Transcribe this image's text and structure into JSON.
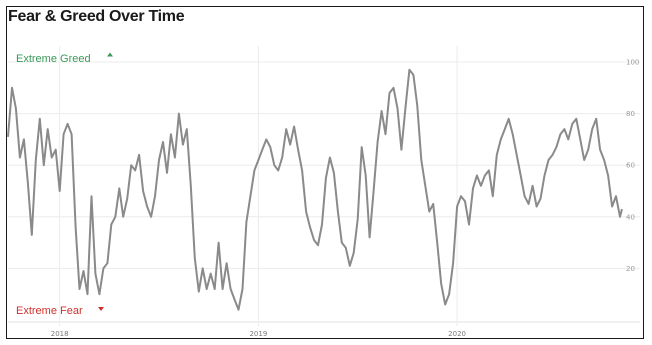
{
  "chart_data": {
    "type": "line",
    "title": "Fear & Greed Over Time",
    "xlabel": "",
    "ylabel": "",
    "ylim": [
      0,
      100
    ],
    "y_ticks": [
      "100",
      "80",
      "60",
      "40",
      "20"
    ],
    "x_ticks": [
      {
        "value": 2018.0,
        "label": "2018"
      },
      {
        "value": 2019.0,
        "label": "2019"
      },
      {
        "value": 2020.0,
        "label": "2020"
      }
    ],
    "xlim": [
      2017.74,
      2020.83
    ],
    "grid": true,
    "annotations": {
      "top": "Extreme Greed",
      "bottom": "Extreme Fear"
    },
    "colors": {
      "line": "#8a8a8a",
      "greed": "#3a9a5a",
      "fear": "#d0312d"
    },
    "series": [
      {
        "values": [
          [
            2017.74,
            71
          ],
          [
            2017.76,
            90
          ],
          [
            2017.78,
            82
          ],
          [
            2017.8,
            63
          ],
          [
            2017.82,
            70
          ],
          [
            2017.84,
            53
          ],
          [
            2017.86,
            33
          ],
          [
            2017.88,
            62
          ],
          [
            2017.9,
            78
          ],
          [
            2017.92,
            60
          ],
          [
            2017.94,
            74
          ],
          [
            2017.96,
            63
          ],
          [
            2017.98,
            66
          ],
          [
            2018.0,
            50
          ],
          [
            2018.02,
            72
          ],
          [
            2018.04,
            76
          ],
          [
            2018.06,
            72
          ],
          [
            2018.08,
            36
          ],
          [
            2018.1,
            12
          ],
          [
            2018.12,
            19
          ],
          [
            2018.14,
            10
          ],
          [
            2018.16,
            48
          ],
          [
            2018.18,
            18
          ],
          [
            2018.2,
            10
          ],
          [
            2018.22,
            20
          ],
          [
            2018.24,
            22
          ],
          [
            2018.26,
            37
          ],
          [
            2018.28,
            40
          ],
          [
            2018.3,
            51
          ],
          [
            2018.32,
            40
          ],
          [
            2018.34,
            47
          ],
          [
            2018.36,
            60
          ],
          [
            2018.38,
            58
          ],
          [
            2018.4,
            64
          ],
          [
            2018.42,
            50
          ],
          [
            2018.44,
            44
          ],
          [
            2018.46,
            40
          ],
          [
            2018.48,
            48
          ],
          [
            2018.5,
            62
          ],
          [
            2018.52,
            69
          ],
          [
            2018.54,
            57
          ],
          [
            2018.56,
            72
          ],
          [
            2018.58,
            63
          ],
          [
            2018.6,
            80
          ],
          [
            2018.62,
            68
          ],
          [
            2018.64,
            74
          ],
          [
            2018.66,
            52
          ],
          [
            2018.68,
            24
          ],
          [
            2018.7,
            11
          ],
          [
            2018.72,
            20
          ],
          [
            2018.74,
            12
          ],
          [
            2018.76,
            18
          ],
          [
            2018.78,
            12
          ],
          [
            2018.8,
            30
          ],
          [
            2018.82,
            12
          ],
          [
            2018.84,
            22
          ],
          [
            2018.86,
            12
          ],
          [
            2018.88,
            8
          ],
          [
            2018.9,
            4
          ],
          [
            2018.92,
            12
          ],
          [
            2018.94,
            38
          ],
          [
            2018.96,
            48
          ],
          [
            2018.98,
            58
          ],
          [
            2019.0,
            62
          ],
          [
            2019.02,
            66
          ],
          [
            2019.04,
            70
          ],
          [
            2019.06,
            67
          ],
          [
            2019.08,
            60
          ],
          [
            2019.1,
            58
          ],
          [
            2019.12,
            63
          ],
          [
            2019.14,
            74
          ],
          [
            2019.16,
            68
          ],
          [
            2019.18,
            75
          ],
          [
            2019.2,
            66
          ],
          [
            2019.22,
            58
          ],
          [
            2019.24,
            42
          ],
          [
            2019.26,
            36
          ],
          [
            2019.28,
            31
          ],
          [
            2019.3,
            29
          ],
          [
            2019.32,
            37
          ],
          [
            2019.34,
            55
          ],
          [
            2019.36,
            63
          ],
          [
            2019.38,
            57
          ],
          [
            2019.4,
            42
          ],
          [
            2019.42,
            30
          ],
          [
            2019.44,
            28
          ],
          [
            2019.46,
            21
          ],
          [
            2019.48,
            26
          ],
          [
            2019.5,
            39
          ],
          [
            2019.52,
            67
          ],
          [
            2019.54,
            56
          ],
          [
            2019.56,
            32
          ],
          [
            2019.58,
            50
          ],
          [
            2019.6,
            69
          ],
          [
            2019.62,
            81
          ],
          [
            2019.64,
            72
          ],
          [
            2019.66,
            88
          ],
          [
            2019.68,
            90
          ],
          [
            2019.7,
            82
          ],
          [
            2019.72,
            66
          ],
          [
            2019.74,
            82
          ],
          [
            2019.76,
            97
          ],
          [
            2019.78,
            95
          ],
          [
            2019.8,
            83
          ],
          [
            2019.82,
            62
          ],
          [
            2019.84,
            52
          ],
          [
            2019.86,
            42
          ],
          [
            2019.88,
            45
          ],
          [
            2019.9,
            30
          ],
          [
            2019.92,
            14
          ],
          [
            2019.94,
            6
          ],
          [
            2019.96,
            10
          ],
          [
            2019.98,
            22
          ],
          [
            2020.0,
            44
          ],
          [
            2020.02,
            48
          ],
          [
            2020.04,
            46
          ],
          [
            2020.06,
            37
          ],
          [
            2020.08,
            51
          ],
          [
            2020.1,
            56
          ],
          [
            2020.12,
            52
          ],
          [
            2020.14,
            56
          ],
          [
            2020.16,
            58
          ],
          [
            2020.18,
            48
          ],
          [
            2020.2,
            64
          ],
          [
            2020.22,
            70
          ],
          [
            2020.24,
            74
          ],
          [
            2020.26,
            78
          ],
          [
            2020.28,
            72
          ],
          [
            2020.3,
            64
          ],
          [
            2020.32,
            56
          ],
          [
            2020.34,
            48
          ],
          [
            2020.36,
            45
          ],
          [
            2020.38,
            52
          ],
          [
            2020.4,
            44
          ],
          [
            2020.42,
            47
          ],
          [
            2020.44,
            56
          ],
          [
            2020.46,
            62
          ],
          [
            2020.48,
            64
          ],
          [
            2020.5,
            67
          ],
          [
            2020.52,
            72
          ],
          [
            2020.54,
            74
          ],
          [
            2020.56,
            70
          ],
          [
            2020.58,
            76
          ],
          [
            2020.6,
            78
          ],
          [
            2020.62,
            70
          ],
          [
            2020.64,
            62
          ],
          [
            2020.66,
            66
          ],
          [
            2020.68,
            74
          ],
          [
            2020.7,
            78
          ],
          [
            2020.72,
            66
          ],
          [
            2020.74,
            62
          ],
          [
            2020.76,
            56
          ],
          [
            2020.78,
            44
          ],
          [
            2020.8,
            48
          ],
          [
            2020.82,
            40
          ],
          [
            2020.83,
            43
          ]
        ]
      }
    ]
  }
}
